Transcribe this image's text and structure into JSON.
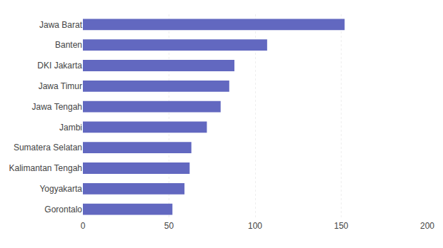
{
  "chart_data": {
    "type": "bar",
    "orientation": "horizontal",
    "categories": [
      "Gorontalo",
      "Yogyakarta",
      "Kalimantan Tengah",
      "Sumatera Selatan",
      "Jambi",
      "Jawa Tengah",
      "Jawa Timur",
      "DKI Jakarta",
      "Banten",
      "Jawa Barat"
    ],
    "values": [
      52,
      59,
      62,
      63,
      72,
      80,
      85,
      88,
      107,
      152
    ],
    "color": "#6268C0",
    "xlim": [
      0,
      200
    ],
    "xticks": [
      0,
      50,
      100,
      150,
      200
    ],
    "grid": true
  }
}
